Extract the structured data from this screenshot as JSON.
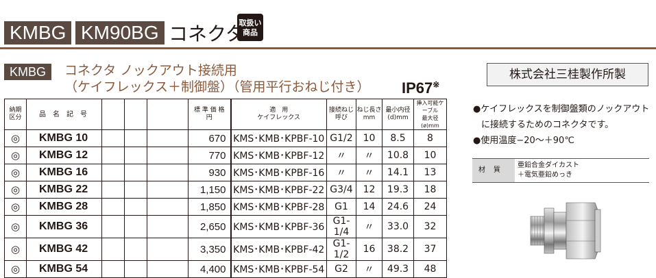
{
  "header": {
    "badge1": "KMBG",
    "badge2": "KM90BG",
    "title": "コネクタ",
    "stamp_line1": "取扱い",
    "stamp_line2": "商品"
  },
  "subheader": {
    "badge": "KMBG",
    "line1": "コネクタ ノックアウト接続用",
    "line2": "（ケイフレックス＋制御盤）（管用平行おねじ付き）",
    "rating": "IP67",
    "rating_mark": "※"
  },
  "maker": "株式会社三桂製作所製",
  "table": {
    "headers": {
      "kubun": "納期\n区分",
      "model": "品　名　記　号",
      "price": "標 準 価 格\n円",
      "flex": "適　用\nケイフレックス",
      "thread": "接続ねじ\n呼び",
      "length": "ねじ長さ\nmm",
      "min_id": "最小内径\n(d)mm",
      "cable": "挿入可能ケーブル\n最大径(ø)mm"
    },
    "rows": [
      {
        "kubun": "◎",
        "model": "KMBG 10",
        "price": "670",
        "flex": "KMS･KMB･KPBF-10",
        "thread": "G1/2",
        "length": "10",
        "min_id": "8.5",
        "cable": "8"
      },
      {
        "kubun": "◎",
        "model": "KMBG 12",
        "price": "770",
        "flex": "KMS･KMB･KPBF-12",
        "thread": "〃",
        "length": "〃",
        "min_id": "10.8",
        "cable": "10"
      },
      {
        "kubun": "◎",
        "model": "KMBG 16",
        "price": "930",
        "flex": "KMS･KMB･KPBF-16",
        "thread": "〃",
        "length": "〃",
        "min_id": "14.1",
        "cable": "13"
      },
      {
        "kubun": "◎",
        "model": "KMBG 22",
        "price": "1,150",
        "flex": "KMS･KMB･KPBF-22",
        "thread": "G3/4",
        "length": "12",
        "min_id": "19.3",
        "cable": "18"
      },
      {
        "kubun": "◎",
        "model": "KMBG 28",
        "price": "1,850",
        "flex": "KMS･KMB･KPBF-28",
        "thread": "G1",
        "length": "14",
        "min_id": "24.6",
        "cable": "24"
      },
      {
        "kubun": "◎",
        "model": "KMBG 36",
        "price": "2,650",
        "flex": "KMS･KMB･KPBF-36",
        "thread": "G1-1/4",
        "length": "〃",
        "min_id": "33.0",
        "cable": "32"
      },
      {
        "kubun": "◎",
        "model": "KMBG 42",
        "price": "3,350",
        "flex": "KMS･KMB･KPBF-42",
        "thread": "G1-1/2",
        "length": "16",
        "min_id": "38.2",
        "cable": "37"
      },
      {
        "kubun": "◎",
        "model": "KMBG 54",
        "price": "4,400",
        "flex": "KMS･KMB･KPBF-54",
        "thread": "G2",
        "length": "〃",
        "min_id": "49.3",
        "cable": "48"
      }
    ]
  },
  "notes": {
    "line1": "●ケイフレックスを制御盤類のノックアウト",
    "line2": "に接続するためのコネクタです。",
    "line3": "●使用温度−20〜＋90℃"
  },
  "material": {
    "label": "材質",
    "value1": "亜鉛合金ダイカスト",
    "value2": "＋電気亜鉛めっき"
  }
}
